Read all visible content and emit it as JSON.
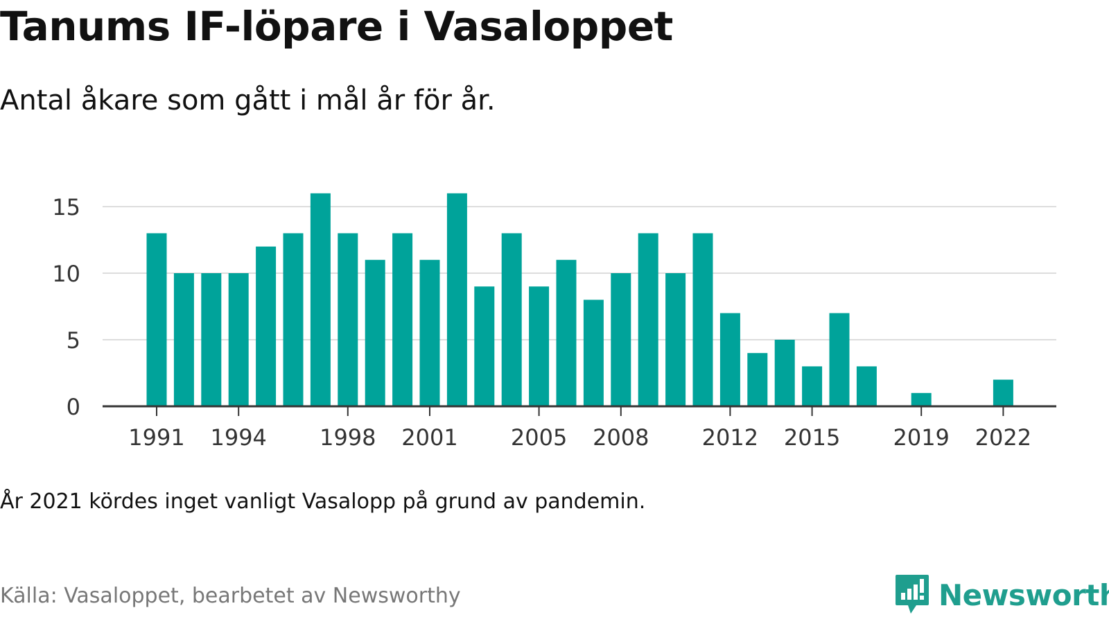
{
  "header": {
    "title": "Tanums IF-löpare i Vasaloppet",
    "subtitle": "Antal åkare som gått i mål år för år."
  },
  "footer": {
    "footnote": "År 2021 kördes inget vanligt Vasalopp på grund av pandemin.",
    "source": "Källa: Vasaloppet, bearbetet av Newsworthy",
    "brand": "Newsworthy",
    "brand_icon": "newsworthy-logo-icon"
  },
  "colors": {
    "bar": "#00a39a",
    "grid": "#dddddd",
    "axis": "#333333",
    "brand": "#1f9e8e"
  },
  "chart_data": {
    "type": "bar",
    "categories": [
      1991,
      1992,
      1993,
      1994,
      1995,
      1996,
      1997,
      1998,
      1999,
      2000,
      2001,
      2002,
      2003,
      2004,
      2005,
      2006,
      2007,
      2008,
      2009,
      2010,
      2011,
      2012,
      2013,
      2014,
      2015,
      2016,
      2017,
      2018,
      2019,
      2020,
      2021,
      2022
    ],
    "values": [
      13,
      10,
      10,
      10,
      12,
      13,
      16,
      13,
      11,
      13,
      11,
      16,
      9,
      13,
      9,
      11,
      8,
      10,
      13,
      10,
      13,
      7,
      4,
      5,
      3,
      7,
      3,
      0,
      1,
      0,
      0,
      2
    ],
    "x_tick_labels": [
      1991,
      1994,
      1998,
      2001,
      2005,
      2008,
      2012,
      2015,
      2019,
      2022
    ],
    "y_ticks": [
      0,
      5,
      10,
      15
    ],
    "ylim": [
      0,
      16
    ],
    "grid": true,
    "legend": "none"
  }
}
